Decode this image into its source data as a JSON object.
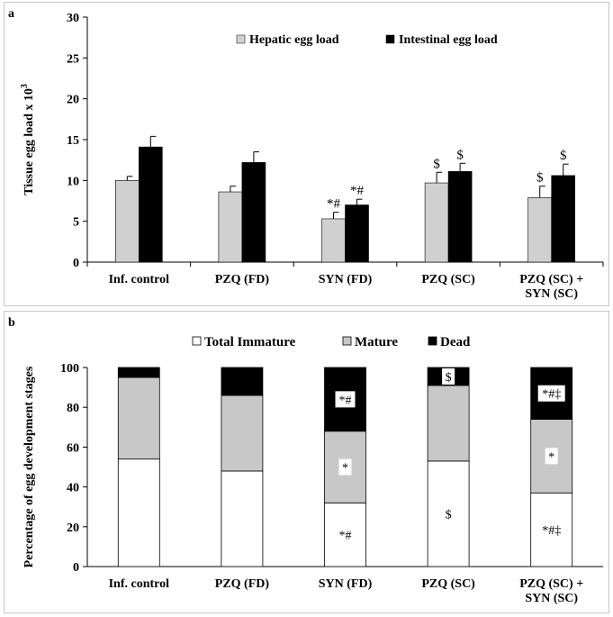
{
  "chart_data": [
    {
      "panel_label": "a",
      "type": "bar",
      "ylabel": "Tissue egg load x 10",
      "ylabel_sup": "3",
      "ylim": [
        0,
        30
      ],
      "yticks": [
        "0",
        "5",
        "10",
        "15",
        "20",
        "25",
        "30"
      ],
      "categories": [
        "Inf. control",
        "PZQ (FD)",
        "SYN (FD)",
        "PZQ (SC)",
        "PZQ (SC) +\nSYN (SC)"
      ],
      "series": [
        {
          "name": "Hepatic egg load",
          "color": "#d0d0d0",
          "values": [
            10.0,
            8.6,
            5.3,
            9.7,
            7.9
          ],
          "errors": [
            0.5,
            0.7,
            0.8,
            1.3,
            1.4
          ],
          "annotations": [
            "",
            "",
            "*#",
            "$",
            "$"
          ]
        },
        {
          "name": "Intestinal egg load",
          "color": "#000000",
          "values": [
            14.1,
            12.2,
            7.0,
            11.1,
            10.6
          ],
          "errors": [
            1.3,
            1.3,
            0.7,
            1.0,
            1.4
          ],
          "annotations": [
            "",
            "",
            "*#",
            "$",
            "$"
          ]
        }
      ]
    },
    {
      "panel_label": "b",
      "type": "bar",
      "stacked": true,
      "ylabel": "Percentage of egg development stages",
      "ylim": [
        0,
        100
      ],
      "yticks": [
        "0",
        "20",
        "40",
        "60",
        "80",
        "100"
      ],
      "categories": [
        "Inf. control",
        "PZQ (FD)",
        "SYN (FD)",
        "PZQ (SC)",
        "PZQ (SC) +\nSYN (SC)"
      ],
      "series": [
        {
          "name": "Total Immature",
          "color": "#ffffff",
          "values": [
            54,
            48,
            32,
            53,
            37
          ],
          "annotations": [
            "",
            "",
            "*#",
            "$",
            "*#‡"
          ]
        },
        {
          "name": "Mature",
          "color": "#c8c8c8",
          "values": [
            41,
            38,
            36,
            38,
            37
          ],
          "annotations": [
            "",
            "",
            "*",
            "",
            "*"
          ]
        },
        {
          "name": "Dead",
          "color": "#000000",
          "values": [
            5,
            14,
            32,
            9,
            26
          ],
          "annotations": [
            "",
            "",
            "*#",
            "$",
            "*#‡"
          ]
        }
      ]
    }
  ]
}
